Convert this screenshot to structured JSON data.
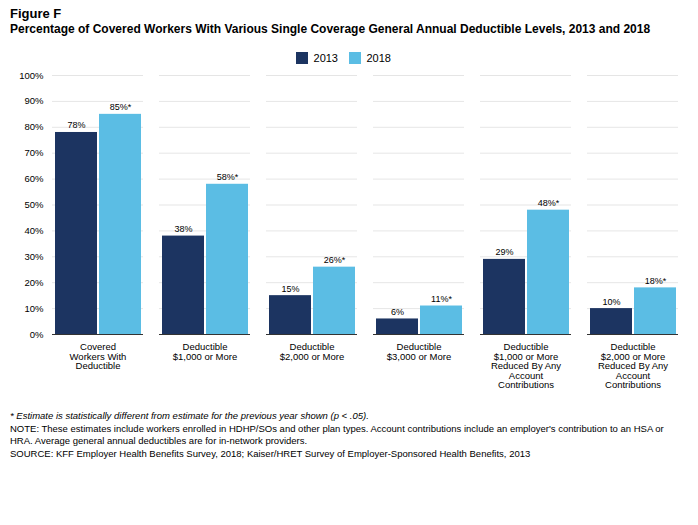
{
  "chart_data": {
    "type": "bar",
    "title": "Figure F",
    "subtitle": "Percentage of Covered Workers With Various Single Coverage General Annual Deductible Levels, 2013 and 2018",
    "categories": [
      "Covered\nWorkers With\nDeductible",
      "Deductible\n$1,000 or More",
      "Deductible\n$2,000 or More",
      "Deductible\n$3,000 or More",
      "Deductible\n$1,000 or More\nReduced By Any\nAccount\nContributions",
      "Deductible\n$2,000 or More\nReduced By Any\nAccount\nContributions"
    ],
    "series": [
      {
        "name": "2013",
        "color": "#1c3461",
        "values": [
          78,
          38,
          15,
          6,
          29,
          10
        ],
        "value_labels": [
          "78%",
          "38%",
          "15%",
          "6%",
          "29%",
          "10%"
        ]
      },
      {
        "name": "2018",
        "color": "#5bbde4",
        "values": [
          85,
          58,
          26,
          11,
          48,
          18
        ],
        "value_labels": [
          "85%*",
          "58%*",
          "26%*",
          "11%*",
          "48%*",
          "18%*"
        ]
      }
    ],
    "ylim": [
      0,
      100
    ],
    "yticks": [
      {
        "value": 0,
        "label": "0%"
      },
      {
        "value": 10,
        "label": "10%"
      },
      {
        "value": 20,
        "label": "20%"
      },
      {
        "value": 30,
        "label": "30%"
      },
      {
        "value": 40,
        "label": "40%"
      },
      {
        "value": 50,
        "label": "50%"
      },
      {
        "value": 60,
        "label": "60%"
      },
      {
        "value": 70,
        "label": "70%"
      },
      {
        "value": 80,
        "label": "80%"
      },
      {
        "value": 90,
        "label": "90%"
      },
      {
        "value": 100,
        "label": "100%"
      }
    ],
    "grid": true,
    "legend": "top",
    "data_labels": true,
    "footnotes": [
      "* Estimate is statistically different from estimate for the previous year shown (p < .05).",
      "NOTE: These estimates include workers enrolled in HDHP/SOs and other plan types. Account contributions include an employer's contribution to an HSA or HRA. Average general annual deductibles are for in-network providers.",
      "SOURCE: KFF Employer Health Benefits Survey, 2018; Kaiser/HRET Survey of Employer-Sponsored Health Benefits, 2013"
    ]
  }
}
